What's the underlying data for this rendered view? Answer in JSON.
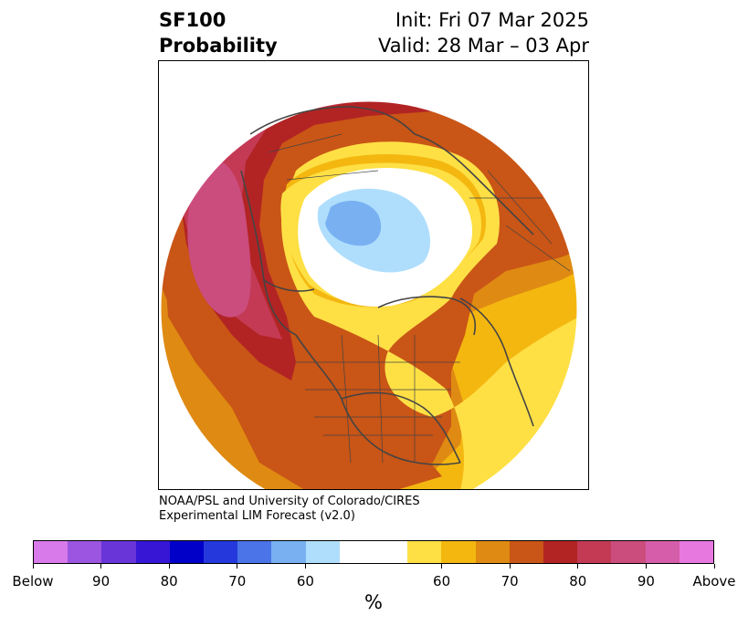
{
  "title": {
    "left_line1": "SF100",
    "left_line2": "Probability",
    "right_line1": "Init: Fri 07 Mar 2025",
    "right_line2": "Valid: 28 Mar – 03 Apr"
  },
  "credit": {
    "line1": "NOAA/PSL and University of Colorado/CIRES",
    "line2": "Experimental LIM Forecast (v2.0)"
  },
  "colorbar": {
    "unit": "%",
    "colors": [
      "#d87aea",
      "#9b55e0",
      "#6a35d8",
      "#3716d6",
      "#0000c8",
      "#2438dc",
      "#4b74e8",
      "#78b0f2",
      "#afdefc",
      "#ffffff",
      "#ffffff",
      "#fee045",
      "#f4b710",
      "#df8a12",
      "#c95516",
      "#b22424",
      "#c43a55",
      "#cb4d7e",
      "#d65da9",
      "#e778e0"
    ],
    "tick_labels": [
      "Below",
      "90",
      "80",
      "70",
      "60",
      "60",
      "70",
      "80",
      "90",
      "Above"
    ]
  },
  "map_colors": {
    "above_95": "#e778e0",
    "above_85": "#cb4d7e",
    "above_80": "#c43a55",
    "above_75": "#b22424",
    "above_70": "#c95516",
    "above_65": "#df8a12",
    "above_60": "#f4b710",
    "above_55": "#fee045",
    "neutral": "#ffffff",
    "below_55": "#afdefc",
    "below_60": "#78b0f2",
    "coast": "#444444"
  }
}
